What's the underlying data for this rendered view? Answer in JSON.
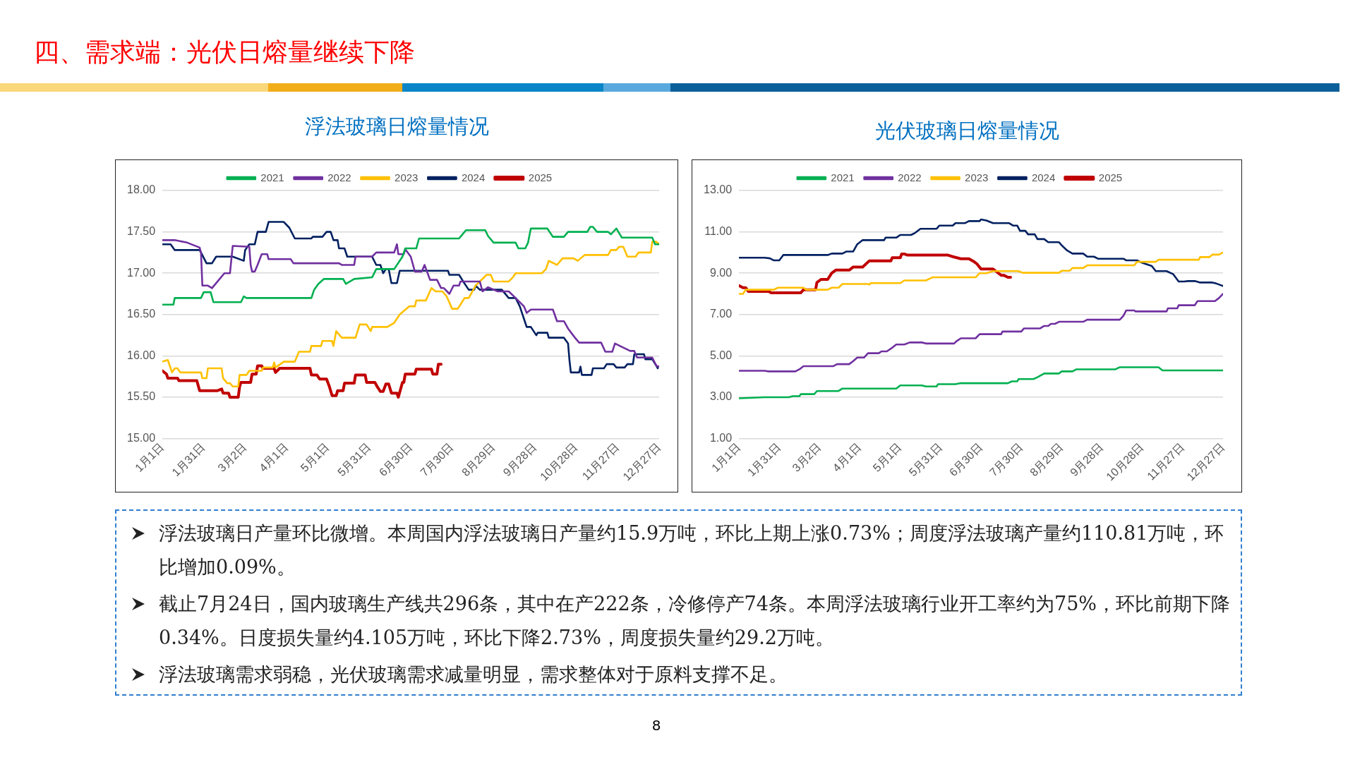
{
  "chart_data": [
    {
      "type": "line",
      "title": "浮法玻璃日熔量情况",
      "legend": "top",
      "grid": "y",
      "line_style": "solid",
      "marker": "none",
      "xlim": [
        "--01-01",
        "--12-27"
      ],
      "xticks": [
        {
          "value": "--01-01",
          "label": "1月1日"
        },
        {
          "value": "--01-31",
          "label": "1月31日"
        },
        {
          "value": "--03-02",
          "label": "3月2日"
        },
        {
          "value": "--04-01",
          "label": "4月1日"
        },
        {
          "value": "--05-01",
          "label": "5月1日"
        },
        {
          "value": "--05-31",
          "label": "5月31日"
        },
        {
          "value": "--06-30",
          "label": "6月30日"
        },
        {
          "value": "--07-30",
          "label": "7月30日"
        },
        {
          "value": "--08-29",
          "label": "8月29日"
        },
        {
          "value": "--09-28",
          "label": "9月28日"
        },
        {
          "value": "--10-28",
          "label": "10月28日"
        },
        {
          "value": "--11-27",
          "label": "11月27日"
        },
        {
          "value": "--12-27",
          "label": "12月27日"
        }
      ],
      "ylim": [
        15,
        18
      ],
      "yticks": [
        {
          "value": 15,
          "label": "15.00"
        },
        {
          "value": 15.5,
          "label": "15.50"
        },
        {
          "value": 16,
          "label": "16.00"
        },
        {
          "value": 16.5,
          "label": "16.50"
        },
        {
          "value": 17,
          "label": "17.00"
        },
        {
          "value": 17.5,
          "label": "17.50"
        },
        {
          "value": 18,
          "label": "18.00"
        }
      ],
      "series": [
        {
          "name": "2021",
          "color": "#00b050",
          "x": [
            "--01-01",
            "--01-09",
            "--01-10",
            "--01-29",
            "--01-31",
            "--02-05",
            "--02-07",
            "--02-27",
            "--03-01",
            "--03-03",
            "--04-19",
            "--04-21",
            "--04-24",
            "--04-28",
            "--05-12",
            "--05-14",
            "--05-20",
            "--06-02",
            "--06-05",
            "--06-18",
            "--06-24",
            "--06-26",
            "--07-04",
            "--07-06",
            "--08-04",
            "--08-06",
            "--08-09",
            "--08-23",
            "--08-25",
            "--08-29",
            "--09-14",
            "--09-16",
            "--09-21",
            "--09-23",
            "--09-25",
            "--10-07",
            "--10-11",
            "--10-19",
            "--10-22",
            "--11-05",
            "--11-07",
            "--11-09",
            "--11-12",
            "--11-20",
            "--11-22",
            "--11-26",
            "--11-30",
            "--12-22",
            "--12-24",
            "--12-27"
          ],
          "values": [
            16.62,
            16.62,
            16.7,
            16.7,
            16.77,
            16.77,
            16.65,
            16.65,
            16.72,
            16.7,
            16.7,
            16.8,
            16.87,
            16.93,
            16.93,
            16.87,
            16.93,
            16.95,
            17.05,
            17.05,
            17.2,
            17.3,
            17.3,
            17.42,
            17.42,
            17.46,
            17.52,
            17.52,
            17.45,
            17.37,
            17.37,
            17.3,
            17.3,
            17.37,
            17.54,
            17.54,
            17.44,
            17.44,
            17.5,
            17.5,
            17.56,
            17.56,
            17.5,
            17.5,
            17.47,
            17.54,
            17.43,
            17.43,
            17.35,
            17.35
          ]
        },
        {
          "name": "2022",
          "color": "#7030a0",
          "x": [
            "--01-01",
            "--01-10",
            "--01-19",
            "--01-28",
            "--01-29",
            "--01-30",
            "--02-03",
            "--02-06",
            "--02-10",
            "--02-15",
            "--02-19",
            "--02-21",
            "--03-05",
            "--03-06",
            "--03-07",
            "--03-09",
            "--03-11",
            "--03-14",
            "--03-18",
            "--03-19",
            "--04-04",
            "--04-06",
            "--05-09",
            "--05-11",
            "--05-20",
            "--05-21",
            "--06-02",
            "--06-05",
            "--06-18",
            "--06-20",
            "--06-21",
            "--06-25",
            "--06-26",
            "--06-30",
            "--07-03",
            "--07-08",
            "--07-10",
            "--07-14",
            "--07-19",
            "--07-22",
            "--07-24",
            "--07-28",
            "--07-31",
            "--08-04",
            "--08-05",
            "--08-19",
            "--08-21",
            "--08-25",
            "--09-01",
            "--09-09",
            "--09-14",
            "--09-20",
            "--09-22",
            "--09-25",
            "--10-11",
            "--10-14",
            "--10-19",
            "--10-22",
            "--10-27",
            "--10-30",
            "--11-15",
            "--11-18",
            "--11-23",
            "--11-25",
            "--12-01",
            "--12-06",
            "--12-09",
            "--12-11",
            "--12-22",
            "--12-25",
            "--12-27"
          ],
          "values": [
            17.4,
            17.4,
            17.37,
            17.31,
            17.25,
            16.85,
            16.85,
            16.82,
            16.9,
            17,
            17,
            17.33,
            17.32,
            17.1,
            17.02,
            17.02,
            17.1,
            17.23,
            17.23,
            17.17,
            17.17,
            17.12,
            17.12,
            17.1,
            17.1,
            17.2,
            17.2,
            17.25,
            17.25,
            17.35,
            17.23,
            17.23,
            17.29,
            17.2,
            17.02,
            17.02,
            17.1,
            16.92,
            16.92,
            16.82,
            16.82,
            16.75,
            16.85,
            16.85,
            16.9,
            16.9,
            16.78,
            16.83,
            16.78,
            16.78,
            16.7,
            16.6,
            16.52,
            16.56,
            16.56,
            16.42,
            16.42,
            16.33,
            16.22,
            16.16,
            16.16,
            16.05,
            16.05,
            16.15,
            16.1,
            16.06,
            16.06,
            15.98,
            15.98,
            15.88,
            15.87
          ]
        },
        {
          "name": "2023",
          "color": "#ffc000",
          "x": [
            "--01-01",
            "--01-05",
            "--01-08",
            "--01-10",
            "--01-12",
            "--01-14",
            "--01-29",
            "--01-30",
            "--02-02",
            "--02-03",
            "--02-13",
            "--02-14",
            "--02-17",
            "--02-19",
            "--02-21",
            "--02-25",
            "--02-26",
            "--03-03",
            "--03-05",
            "--03-14",
            "--03-15",
            "--03-22",
            "--03-23",
            "--03-24",
            "--03-30",
            "--04-07",
            "--04-10",
            "--04-18",
            "--04-19",
            "--04-26",
            "--04-27",
            "--05-04",
            "--05-05",
            "--05-07",
            "--05-11",
            "--05-21",
            "--05-24",
            "--05-29",
            "--06-01",
            "--06-02",
            "--06-13",
            "--06-18",
            "--06-22",
            "--06-29",
            "--07-03",
            "--07-04",
            "--07-11",
            "--07-15",
            "--07-18",
            "--07-23",
            "--07-26",
            "--07-30",
            "--08-03",
            "--08-05",
            "--08-08",
            "--08-11",
            "--08-16",
            "--08-24",
            "--08-27",
            "--08-29",
            "--09-09",
            "--09-12",
            "--09-14",
            "--10-03",
            "--10-06",
            "--10-08",
            "--10-14",
            "--10-18",
            "--10-26",
            "--10-29",
            "--11-03",
            "--11-20",
            "--11-22",
            "--11-26",
            "--11-28",
            "--12-01",
            "--12-04",
            "--12-10",
            "--12-12",
            "--12-21",
            "--12-22",
            "--12-25",
            "--12-27"
          ],
          "values": [
            15.93,
            15.95,
            15.8,
            15.85,
            15.85,
            15.8,
            15.8,
            15.73,
            15.73,
            15.85,
            15.85,
            15.73,
            15.67,
            15.67,
            15.63,
            15.63,
            15.77,
            15.77,
            15.82,
            15.82,
            15.86,
            15.86,
            15.92,
            15.86,
            15.93,
            15.93,
            16.05,
            16.05,
            16.12,
            16.12,
            16.18,
            16.18,
            16.12,
            16.3,
            16.22,
            16.22,
            16.38,
            16.38,
            16.3,
            16.35,
            16.35,
            16.4,
            16.5,
            16.6,
            16.6,
            16.67,
            16.67,
            16.82,
            16.78,
            16.78,
            16.72,
            16.57,
            16.57,
            16.62,
            16.7,
            16.7,
            16.85,
            16.98,
            16.98,
            16.9,
            16.9,
            16.95,
            17,
            17,
            17.05,
            17.15,
            17.1,
            17.18,
            17.18,
            17.15,
            17.22,
            17.22,
            17.28,
            17.28,
            17.32,
            17.32,
            17.2,
            17.2,
            17.25,
            17.25,
            17.38,
            17.38,
            17.35
          ]
        },
        {
          "name": "2024",
          "color": "#002060",
          "x": [
            "--01-01",
            "--01-07",
            "--01-10",
            "--01-28",
            "--01-29",
            "--02-02",
            "--02-06",
            "--02-09",
            "--02-21",
            "--03-01",
            "--03-02",
            "--03-05",
            "--03-09",
            "--03-11",
            "--03-17",
            "--03-19",
            "--03-30",
            "--04-03",
            "--04-07",
            "--04-19",
            "--04-20",
            "--04-27",
            "--04-30",
            "--05-03",
            "--05-05",
            "--05-08",
            "--05-09",
            "--05-13",
            "--05-15",
            "--06-02",
            "--06-05",
            "--06-08",
            "--06-10",
            "--06-12",
            "--06-14",
            "--06-16",
            "--06-20",
            "--06-22",
            "--07-27",
            "--07-28",
            "--08-04",
            "--08-07",
            "--08-11",
            "--08-15",
            "--08-16",
            "--08-19",
            "--09-04",
            "--09-09",
            "--09-14",
            "--09-17",
            "--09-21",
            "--09-22",
            "--09-25",
            "--09-29",
            "--09-30",
            "--10-07",
            "--10-08",
            "--10-19",
            "--10-22",
            "--10-23",
            "--10-24",
            "--10-30",
            "--10-31",
            "--11-01",
            "--11-08",
            "--11-09",
            "--11-17",
            "--11-19",
            "--11-24",
            "--11-26",
            "--12-02",
            "--12-04",
            "--12-08",
            "--12-09",
            "--12-16",
            "--12-17",
            "--12-22",
            "--12-25",
            "--12-26"
          ],
          "values": [
            17.35,
            17.35,
            17.28,
            17.28,
            17.25,
            17.12,
            17.12,
            17.2,
            17.2,
            17.15,
            17.28,
            17.35,
            17.35,
            17.5,
            17.5,
            17.62,
            17.62,
            17.55,
            17.42,
            17.42,
            17.44,
            17.44,
            17.5,
            17.5,
            17.4,
            17.4,
            17.3,
            17.3,
            17.2,
            17.2,
            17.1,
            17.1,
            17,
            17.05,
            17.05,
            16.88,
            16.88,
            17.03,
            17.03,
            16.98,
            16.98,
            16.9,
            16.8,
            16.8,
            16.85,
            16.8,
            16.8,
            16.7,
            16.7,
            16.6,
            16.4,
            16.35,
            16.35,
            16.25,
            16.28,
            16.28,
            16.22,
            16.22,
            16.15,
            15.95,
            15.8,
            15.8,
            15.87,
            15.77,
            15.77,
            15.85,
            15.85,
            15.9,
            15.9,
            15.86,
            15.86,
            15.9,
            15.9,
            16.02,
            16.02,
            15.96,
            15.96,
            15.88,
            15.85
          ]
        },
        {
          "name": "2025",
          "color": "#c00000",
          "x": [
            "--01-01",
            "--01-04",
            "--01-05",
            "--01-12",
            "--01-13",
            "--01-26",
            "--01-28",
            "--02-10",
            "--02-13",
            "--02-14",
            "--02-18",
            "--02-19",
            "--02-25",
            "--02-26",
            "--02-27",
            "--03-06",
            "--03-07",
            "--03-10",
            "--03-11",
            "--03-14",
            "--03-15",
            "--03-23",
            "--03-24",
            "--03-27",
            "--04-18",
            "--04-19",
            "--04-23",
            "--04-25",
            "--04-30",
            "--05-02",
            "--05-04",
            "--05-07",
            "--05-08",
            "--05-12",
            "--05-13",
            "--05-20",
            "--05-21",
            "--05-28",
            "--05-29",
            "--06-04",
            "--06-06",
            "--06-08",
            "--06-10",
            "--06-12",
            "--06-14",
            "--06-16",
            "--06-20",
            "--06-21",
            "--06-24",
            "--06-25",
            "--06-26",
            "--07-03",
            "--07-04",
            "--07-15",
            "--07-16",
            "--07-19",
            "--07-20",
            "--07-22"
          ],
          "values": [
            15.82,
            15.78,
            15.73,
            15.73,
            15.7,
            15.7,
            15.58,
            15.58,
            15.6,
            15.55,
            15.55,
            15.5,
            15.5,
            15.63,
            15.68,
            15.68,
            15.78,
            15.78,
            15.88,
            15.88,
            15.85,
            15.85,
            15.8,
            15.85,
            15.85,
            15.77,
            15.77,
            15.72,
            15.72,
            15.63,
            15.52,
            15.52,
            15.58,
            15.58,
            15.67,
            15.67,
            15.77,
            15.77,
            15.68,
            15.68,
            15.62,
            15.57,
            15.57,
            15.66,
            15.66,
            15.55,
            15.55,
            15.5,
            15.68,
            15.68,
            15.78,
            15.78,
            15.84,
            15.84,
            15.78,
            15.78,
            15.9,
            15.9
          ]
        }
      ]
    },
    {
      "type": "line",
      "title": "光伏玻璃日熔量情况",
      "legend": "top",
      "grid": "y",
      "line_style": "solid",
      "marker": "none",
      "xlim": [
        "--01-01",
        "--12-27"
      ],
      "xticks": [
        {
          "value": "--01-01",
          "label": "1月1日"
        },
        {
          "value": "--01-31",
          "label": "1月31日"
        },
        {
          "value": "--03-02",
          "label": "3月2日"
        },
        {
          "value": "--04-01",
          "label": "4月1日"
        },
        {
          "value": "--05-01",
          "label": "5月1日"
        },
        {
          "value": "--05-31",
          "label": "5月31日"
        },
        {
          "value": "--06-30",
          "label": "6月30日"
        },
        {
          "value": "--07-30",
          "label": "7月30日"
        },
        {
          "value": "--08-29",
          "label": "8月29日"
        },
        {
          "value": "--09-28",
          "label": "9月28日"
        },
        {
          "value": "--10-28",
          "label": "10月28日"
        },
        {
          "value": "--11-27",
          "label": "11月27日"
        },
        {
          "value": "--12-27",
          "label": "12月27日"
        }
      ],
      "ylim": [
        1,
        13
      ],
      "yticks": [
        {
          "value": 1,
          "label": "1.00"
        },
        {
          "value": 3,
          "label": "3.00"
        },
        {
          "value": 5,
          "label": "5.00"
        },
        {
          "value": 7,
          "label": "7.00"
        },
        {
          "value": 9,
          "label": "9.00"
        },
        {
          "value": 11,
          "label": "11.00"
        },
        {
          "value": 13,
          "label": "13.00"
        }
      ],
      "series": [
        {
          "name": "2021",
          "color": "#00b050",
          "x": [
            "--01-01",
            "--01-20",
            "--02-07",
            "--02-10",
            "--02-15",
            "--02-16",
            "--02-26",
            "--02-28",
            "--03-16",
            "--03-19",
            "--04-28",
            "--05-01",
            "--05-17",
            "--05-20",
            "--05-28",
            "--05-29",
            "--06-11",
            "--06-15",
            "--07-20",
            "--07-23",
            "--07-27",
            "--07-28",
            "--08-08",
            "--08-11",
            "--08-16",
            "--08-27",
            "--08-29",
            "--09-06",
            "--09-09",
            "--10-08",
            "--10-11",
            "--11-09",
            "--11-12",
            "--12-27"
          ],
          "values": [
            2.95,
            3,
            3,
            3.05,
            3.05,
            3.15,
            3.15,
            3.3,
            3.3,
            3.42,
            3.42,
            3.57,
            3.57,
            3.52,
            3.52,
            3.63,
            3.63,
            3.68,
            3.68,
            3.77,
            3.77,
            3.88,
            3.88,
            3.97,
            4.15,
            4.15,
            4.25,
            4.25,
            4.35,
            4.35,
            4.45,
            4.45,
            4.3,
            4.3
          ]
        },
        {
          "name": "2022",
          "color": "#7030a0",
          "x": [
            "--01-01",
            "--01-20",
            "--01-23",
            "--02-12",
            "--02-15",
            "--02-18",
            "--03-12",
            "--03-15",
            "--03-24",
            "--03-27",
            "--03-30",
            "--04-04",
            "--04-07",
            "--04-15",
            "--04-17",
            "--04-21",
            "--04-24",
            "--04-28",
            "--05-04",
            "--05-08",
            "--05-17",
            "--05-20",
            "--06-10",
            "--06-12",
            "--06-15",
            "--06-26",
            "--06-29",
            "--07-15",
            "--07-16",
            "--07-30",
            "--08-01",
            "--08-13",
            "--08-16",
            "--08-19",
            "--08-21",
            "--08-24",
            "--08-27",
            "--09-14",
            "--09-17",
            "--10-11",
            "--10-12",
            "--10-14",
            "--10-16",
            "--10-22",
            "--10-23",
            "--11-15",
            "--11-16",
            "--11-23",
            "--11-24",
            "--12-06",
            "--12-08",
            "--12-21",
            "--12-24",
            "--12-27"
          ],
          "values": [
            4.28,
            4.28,
            4.25,
            4.25,
            4.35,
            4.5,
            4.5,
            4.6,
            4.6,
            4.75,
            4.92,
            4.92,
            5.13,
            5.13,
            5.22,
            5.22,
            5.35,
            5.55,
            5.55,
            5.65,
            5.65,
            5.6,
            5.6,
            5.72,
            5.85,
            5.85,
            6.05,
            6.05,
            6.18,
            6.18,
            6.33,
            6.33,
            6.45,
            6.45,
            6.55,
            6.55,
            6.65,
            6.65,
            6.75,
            6.75,
            6.8,
            6.95,
            7.2,
            7.2,
            7.15,
            7.15,
            7.3,
            7.3,
            7.45,
            7.45,
            7.65,
            7.65,
            7.8,
            8
          ]
        },
        {
          "name": "2023",
          "color": "#ffc000",
          "x": [
            "--01-01",
            "--01-04",
            "--01-06",
            "--01-27",
            "--01-30",
            "--02-18",
            "--02-20",
            "--03-08",
            "--03-11",
            "--03-16",
            "--03-19",
            "--04-07",
            "--04-08",
            "--04-09",
            "--05-01",
            "--05-04",
            "--05-20",
            "--05-25",
            "--06-26",
            "--06-29",
            "--07-04",
            "--07-09",
            "--07-28",
            "--07-31",
            "--08-27",
            "--08-29",
            "--09-04",
            "--09-06",
            "--09-14",
            "--09-17",
            "--10-22",
            "--10-24",
            "--11-07",
            "--11-09",
            "--12-09",
            "--12-10",
            "--12-17",
            "--12-19",
            "--12-24",
            "--12-27"
          ],
          "values": [
            8,
            8,
            8.2,
            8.2,
            8.3,
            8.3,
            8.2,
            8.2,
            8.3,
            8.3,
            8.48,
            8.48,
            8.45,
            8.52,
            8.52,
            8.65,
            8.65,
            8.8,
            8.8,
            9,
            9,
            9.1,
            9.1,
            9.02,
            9.02,
            9.12,
            9.12,
            9.25,
            9.25,
            9.38,
            9.38,
            9.55,
            9.55,
            9.65,
            9.65,
            9.78,
            9.78,
            9.9,
            9.9,
            10
          ]
        },
        {
          "name": "2024",
          "color": "#002060",
          "x": [
            "--01-01",
            "--01-20",
            "--01-24",
            "--01-27",
            "--01-31",
            "--02-03",
            "--03-08",
            "--03-11",
            "--03-19",
            "--03-22",
            "--03-27",
            "--03-30",
            "--04-03",
            "--04-19",
            "--04-20",
            "--04-28",
            "--05-01",
            "--05-09",
            "--05-12",
            "--05-16",
            "--05-28",
            "--05-30",
            "--06-09",
            "--06-11",
            "--06-18",
            "--06-21",
            "--06-29",
            "--06-30",
            "--07-04",
            "--07-09",
            "--07-21",
            "--07-24",
            "--07-27",
            "--07-29",
            "--08-02",
            "--08-04",
            "--08-09",
            "--08-11",
            "--08-16",
            "--08-19",
            "--08-27",
            "--08-29",
            "--09-02",
            "--09-06",
            "--09-14",
            "--09-17",
            "--09-22",
            "--09-25",
            "--10-14",
            "--10-16",
            "--10-24",
            "--10-28",
            "--11-04",
            "--11-07",
            "--11-15",
            "--11-20",
            "--11-24",
            "--11-28",
            "--12-01",
            "--12-06",
            "--12-10",
            "--12-19",
            "--12-22",
            "--12-27"
          ],
          "values": [
            9.75,
            9.75,
            9.72,
            9.62,
            9.62,
            9.88,
            9.88,
            9.95,
            9.95,
            10.05,
            10.05,
            10.4,
            10.6,
            10.6,
            10.72,
            10.72,
            10.85,
            10.85,
            10.95,
            11.15,
            11.15,
            11.3,
            11.3,
            11.42,
            11.42,
            11.52,
            11.52,
            11.6,
            11.55,
            11.42,
            11.42,
            11.3,
            11.3,
            11.05,
            11.05,
            10.88,
            10.88,
            10.65,
            10.65,
            10.5,
            10.5,
            10.35,
            10.1,
            9.95,
            9.95,
            9.8,
            9.8,
            9.7,
            9.7,
            9.62,
            9.62,
            9.5,
            9.35,
            9.1,
            9.1,
            8.95,
            8.6,
            8.6,
            8.62,
            8.62,
            8.55,
            8.55,
            8.5,
            8.38
          ]
        },
        {
          "name": "2025",
          "color": "#c00000",
          "x": [
            "--01-01",
            "--01-04",
            "--01-06",
            "--01-08",
            "--01-23",
            "--01-25",
            "--02-16",
            "--02-18",
            "--02-27",
            "--02-28",
            "--03-03",
            "--03-08",
            "--03-11",
            "--03-14",
            "--03-24",
            "--03-27",
            "--04-03",
            "--04-08",
            "--04-24",
            "--04-25",
            "--05-01",
            "--05-02",
            "--05-04",
            "--05-06",
            "--06-05",
            "--06-09",
            "--06-15",
            "--06-21",
            "--06-25",
            "--06-27",
            "--06-30",
            "--07-09",
            "--07-11",
            "--07-15",
            "--07-17",
            "--07-20",
            "--07-22"
          ],
          "values": [
            8.4,
            8.3,
            8.3,
            8.12,
            8.12,
            8.05,
            8.05,
            8.2,
            8.2,
            8.55,
            8.7,
            8.7,
            9,
            9.15,
            9.15,
            9.3,
            9.3,
            9.6,
            9.6,
            9.75,
            9.75,
            9.93,
            9.93,
            9.88,
            9.88,
            9.8,
            9.7,
            9.7,
            9.55,
            9.45,
            9.2,
            9.2,
            9.1,
            8.9,
            8.9,
            8.8,
            8.8
          ]
        }
      ]
    },
    {
      "type": "other",
      "title": "四、需求端：光伏日熔量继续下降",
      "annotations": [
        "浮法玻璃日产量环比微增。本周国内浮法玻璃日产量约15.9万吨，环比上期上涨0.73%；周度浮法玻璃产量约110.81万吨，环比增加0.09%。",
        "截止7月24日，国内玻璃生产线共296条，其中在产222条，冷修停产74条。本周浮法玻璃行业开工率约为75%，环比前期下降0.34%。日度损失量约4.105万吨，环比下降2.73%，周度损失量约29.2万吨。",
        "浮法玻璃需求弱稳，光伏玻璃需求减量明显，需求整体对于原料支撑不足。",
        "8"
      ]
    }
  ]
}
